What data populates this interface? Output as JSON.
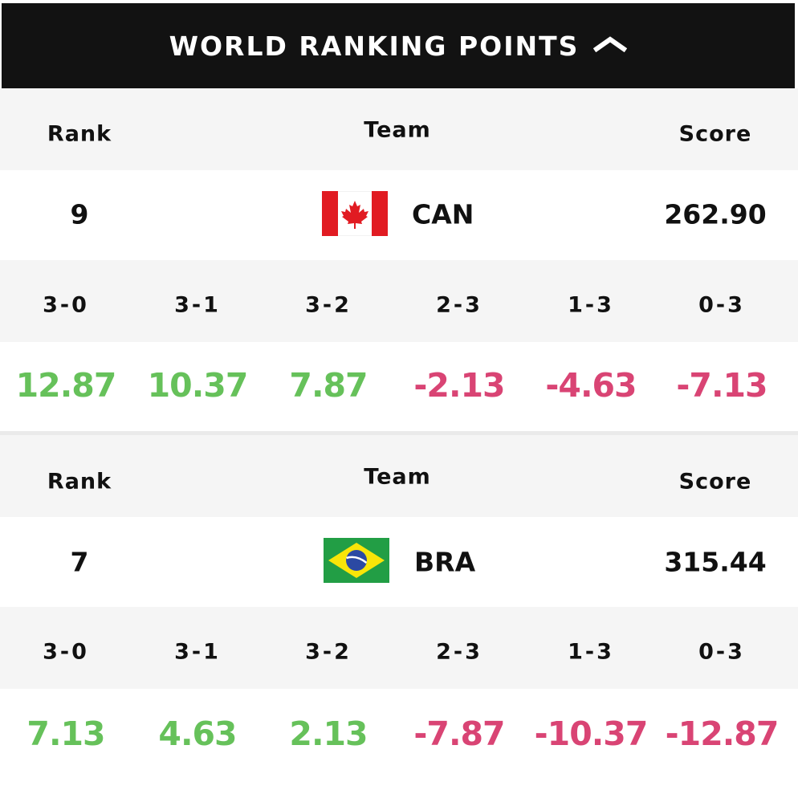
{
  "header": {
    "title": "WORLD RANKING POINTS",
    "toggle_icon": "chevron-up-icon"
  },
  "colors": {
    "header_bg": "#121212",
    "row_grey": "#f5f5f5",
    "positive": "#66c15a",
    "negative": "#d94474"
  },
  "labels": {
    "rank": "Rank",
    "team": "Team",
    "score": "Score"
  },
  "results": [
    "3-0",
    "3-1",
    "3-2",
    "2-3",
    "1-3",
    "0-3"
  ],
  "teams": [
    {
      "rank": "9",
      "code": "CAN",
      "flag_icon": "canada-flag-icon",
      "score": "262.90",
      "points": [
        "12.87",
        "10.37",
        "7.87",
        "-2.13",
        "-4.63",
        "-7.13"
      ]
    },
    {
      "rank": "7",
      "code": "BRA",
      "flag_icon": "brazil-flag-icon",
      "score": "315.44",
      "points": [
        "7.13",
        "4.63",
        "2.13",
        "-7.87",
        "-10.37",
        "-12.87"
      ]
    }
  ]
}
